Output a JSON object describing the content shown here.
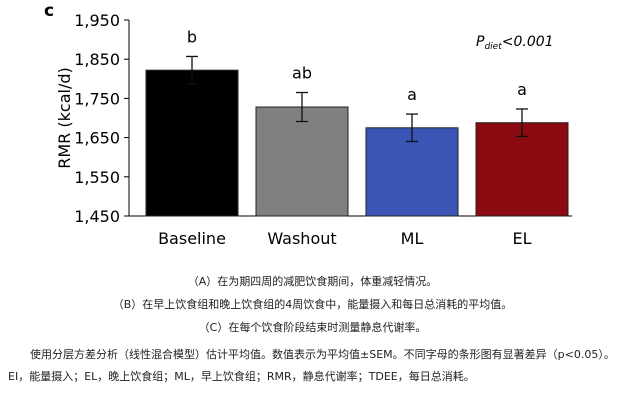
{
  "chart_data": {
    "type": "bar",
    "panel_label": "c",
    "ylabel": "RMR (kcal/d)",
    "ylim": [
      1450,
      1950
    ],
    "yticks": [
      1450,
      1550,
      1650,
      1750,
      1850,
      1950
    ],
    "ytick_labels": [
      "1,450",
      "1,550",
      "1,650",
      "1,750",
      "1,850",
      "1,950"
    ],
    "categories": [
      "Baseline",
      "Washout",
      "ML",
      "EL"
    ],
    "values": [
      1822,
      1728,
      1675,
      1688
    ],
    "errors": [
      35,
      37,
      35,
      35
    ],
    "sig_letters": [
      "b",
      "ab",
      "a",
      "a"
    ],
    "bar_colors": [
      "#000000",
      "#808080",
      "#3a55b5",
      "#8b0b10"
    ],
    "annotation": {
      "prefix": "P",
      "subscript": "diet",
      "suffix": "<0.001"
    },
    "grid": false
  },
  "captions": {
    "a": "（A）在为期四周的减肥饮食期间，体重减轻情况。",
    "b": "（B）在早上饮食组和晚上饮食组的4周饮食中，能量摄入和每日总消耗的平均值。",
    "c": "（C）在每个饮食阶段结束时测量静息代谢率。",
    "note": "使用分层方差分析（线性混合模型）估计平均值。数值表示为平均值±SEM。不同字母的条形图有显著差异（p<0.05）。EI，能量摄入；EL，晚上饮食组；ML，早上饮食组；RMR，静息代谢率；TDEE，每日总消耗。"
  }
}
